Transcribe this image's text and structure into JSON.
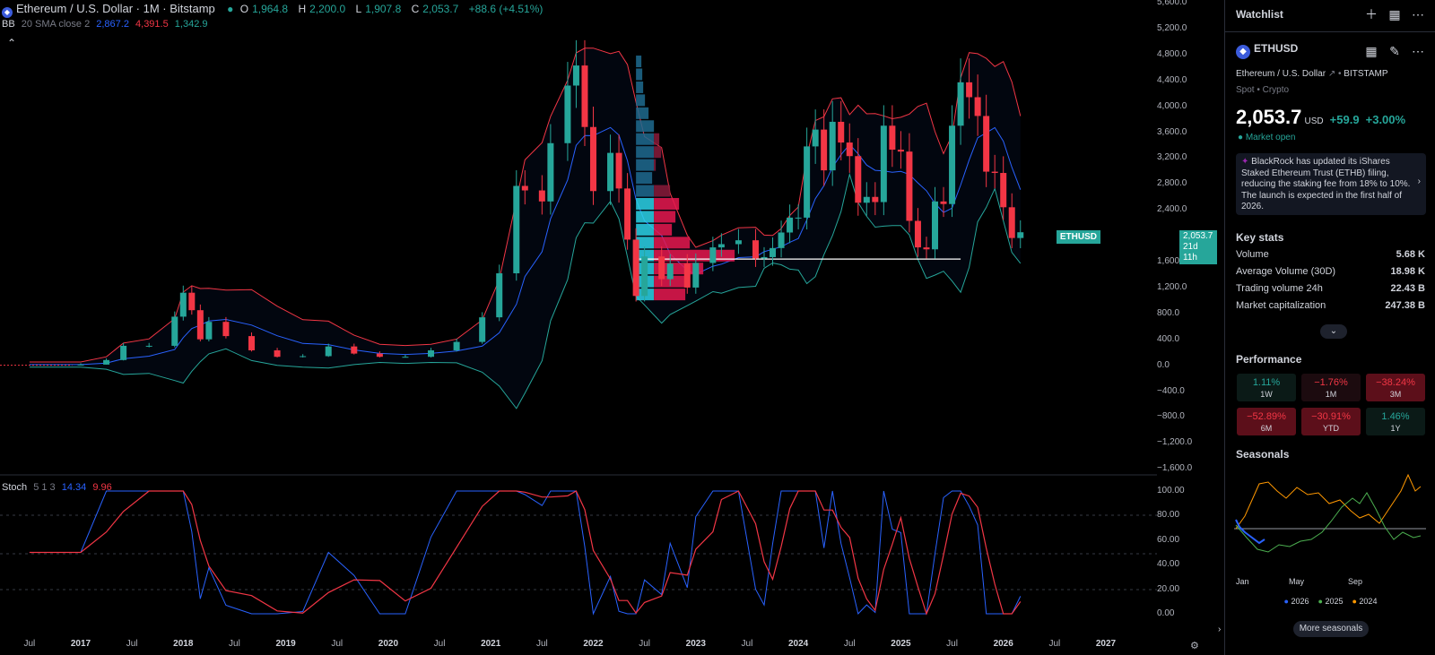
{
  "legend": {
    "title": "Ethereum / U.S. Dollar · 1M · Bitstamp",
    "o_label": "O",
    "o": "1,964.8",
    "h_label": "H",
    "h": "2,200.0",
    "l_label": "L",
    "l": "1,907.8",
    "c_label": "C",
    "c": "2,053.7",
    "change": "+88.6 (+4.51%)",
    "bb_label": "BB",
    "bb_params": "20 SMA close 2",
    "bb_mid": "2,867.2",
    "bb_upper": "4,391.5",
    "bb_lower": "1,342.9",
    "stoch_label": "Stoch",
    "stoch_params": "5 1 3",
    "stoch_k": "14.34",
    "stoch_d": "9.96",
    "collapse_icon": "chevron-up-icon"
  },
  "price_tag": {
    "symbol": "ETHUSD",
    "price": "2,053.7",
    "countdown": "21d 11h"
  },
  "y_axis_main": [
    "5,600.0",
    "5,200.0",
    "4,800.0",
    "4,400.0",
    "4,000.0",
    "3,600.0",
    "3,200.0",
    "2,800.0",
    "2,400.0",
    "1,600.0",
    "1,200.0",
    "800.0",
    "400.0",
    "0.0",
    "−400.0",
    "−800.0",
    "−1,200.0",
    "−1,600.0"
  ],
  "y_axis_stoch": [
    "100.00",
    "80.00",
    "60.00",
    "40.00",
    "20.00",
    "0.00"
  ],
  "x_axis": [
    "Jul",
    "2017",
    "Jul",
    "2018",
    "Jul",
    "2019",
    "Jul",
    "2020",
    "Jul",
    "2021",
    "Jul",
    "2022",
    "Jul",
    "2023",
    "Jul",
    "2024",
    "Jul",
    "2025",
    "Jul",
    "2026",
    "Jul",
    "2027"
  ],
  "colors": {
    "up": "#26a69a",
    "down": "#f23645",
    "bb_mid": "#2962ff",
    "bb_upper": "#f23645",
    "bb_lower": "#26a69a",
    "stoch_k": "#2962ff",
    "stoch_d": "#f23645"
  },
  "chart_data": {
    "type": "candlestick",
    "title": "Ethereum / U.S. Dollar · 1M · Bitstamp",
    "x_range": [
      "2016-07",
      "2026-02"
    ],
    "ylim": [
      -1600,
      5600
    ],
    "candles": [
      [
        1964.8,
        2200.0,
        1907.8,
        2053.7
      ]
    ],
    "close_path": [
      [
        "2016-07",
        10
      ],
      [
        "2017-01",
        10
      ],
      [
        "2017-04",
        80
      ],
      [
        "2017-06",
        300
      ],
      [
        "2017-09",
        300
      ],
      [
        "2017-12",
        750
      ],
      [
        "2018-01",
        1120
      ],
      [
        "2018-02",
        850
      ],
      [
        "2018-03",
        400
      ],
      [
        "2018-04",
        670
      ],
      [
        "2018-06",
        450
      ],
      [
        "2018-09",
        230
      ],
      [
        "2018-12",
        130
      ],
      [
        "2019-03",
        140
      ],
      [
        "2019-06",
        290
      ],
      [
        "2019-09",
        180
      ],
      [
        "2019-12",
        130
      ],
      [
        "2020-03",
        130
      ],
      [
        "2020-06",
        230
      ],
      [
        "2020-09",
        360
      ],
      [
        "2020-12",
        740
      ],
      [
        "2021-02",
        1420
      ],
      [
        "2021-04",
        2770
      ],
      [
        "2021-05",
        2700
      ],
      [
        "2021-07",
        2530
      ],
      [
        "2021-08",
        3430
      ],
      [
        "2021-10",
        4320
      ],
      [
        "2021-11",
        4630
      ],
      [
        "2021-12",
        3680
      ],
      [
        "2022-01",
        2690
      ],
      [
        "2022-03",
        3280
      ],
      [
        "2022-04",
        2730
      ],
      [
        "2022-05",
        1940
      ],
      [
        "2022-06",
        1070
      ],
      [
        "2022-07",
        1680
      ],
      [
        "2022-09",
        1330
      ],
      [
        "2022-10",
        1570
      ],
      [
        "2022-12",
        1200
      ],
      [
        "2023-01",
        1580
      ],
      [
        "2023-03",
        1820
      ],
      [
        "2023-04",
        1870
      ],
      [
        "2023-06",
        1930
      ],
      [
        "2023-08",
        1650
      ],
      [
        "2023-09",
        1670
      ],
      [
        "2023-10",
        1810
      ],
      [
        "2023-11",
        2050
      ],
      [
        "2023-12",
        2280
      ],
      [
        "2024-01",
        2280
      ],
      [
        "2024-02",
        3380
      ],
      [
        "2024-03",
        3640
      ],
      [
        "2024-04",
        3010
      ],
      [
        "2024-05",
        3760
      ],
      [
        "2024-06",
        3440
      ],
      [
        "2024-07",
        3230
      ],
      [
        "2024-08",
        2510
      ],
      [
        "2024-09",
        2600
      ],
      [
        "2024-10",
        2520
      ],
      [
        "2024-11",
        3700
      ],
      [
        "2024-12",
        3330
      ],
      [
        "2025-01",
        3300
      ],
      [
        "2025-02",
        2230
      ],
      [
        "2025-03",
        1820
      ],
      [
        "2025-04",
        1790
      ],
      [
        "2025-05",
        2530
      ],
      [
        "2025-06",
        2490
      ],
      [
        "2025-07",
        3700
      ],
      [
        "2025-08",
        4370
      ],
      [
        "2025-09",
        4140
      ],
      [
        "2025-10",
        3850
      ],
      [
        "2025-11",
        2990
      ],
      [
        "2025-12",
        2970
      ],
      [
        "2026-01",
        2440
      ],
      [
        "2026-02",
        1965
      ],
      [
        "2026-03",
        2054
      ]
    ],
    "bollinger": {
      "mid": 2867.2,
      "upper": 4391.5,
      "lower": 1342.9
    },
    "stoch": {
      "k": 14.34,
      "d": 9.96,
      "ylim": [
        0,
        100
      ]
    },
    "volume_profile": true
  },
  "panel": {
    "watchlist": "Watchlist",
    "symbol": "ETHUSD",
    "description": "Ethereum / U.S. Dollar",
    "exchange": "BITSTAMP",
    "category": "Spot • Crypto",
    "price": "2,053.7",
    "currency": "USD",
    "change": "+59.9",
    "change_pct": "+3.00%",
    "market_status": "Market open",
    "news": "BlackRock has updated its iShares Staked Ethereum Trust (ETHB) filing, reducing the staking fee from 18% to 10%. The launch is expected in the first half of 2026.",
    "key_stats_title": "Key stats",
    "stats": [
      {
        "label": "Volume",
        "value": "5.68 K"
      },
      {
        "label": "Average Volume (30D)",
        "value": "18.98 K"
      },
      {
        "label": "Trading volume 24h",
        "value": "22.43 B"
      },
      {
        "label": "Market capitalization",
        "value": "247.38 B"
      }
    ],
    "performance_title": "Performance",
    "performance": [
      {
        "pct": "1.11%",
        "period": "1W",
        "dir": "up"
      },
      {
        "pct": "−1.76%",
        "period": "1M",
        "dir": "down"
      },
      {
        "pct": "−38.24%",
        "period": "3M",
        "dir": "down"
      },
      {
        "pct": "−52.89%",
        "period": "6M",
        "dir": "down"
      },
      {
        "pct": "−30.91%",
        "period": "YTD",
        "dir": "down"
      },
      {
        "pct": "1.46%",
        "period": "1Y",
        "dir": "up"
      }
    ],
    "seasonals_title": "Seasonals",
    "seasonal_months": [
      "Jan",
      "May",
      "Sep"
    ],
    "seasonal_legend": [
      {
        "year": "2026",
        "color": "#2962ff"
      },
      {
        "year": "2025",
        "color": "#4caf50"
      },
      {
        "year": "2024",
        "color": "#ff9800"
      }
    ],
    "more_seasonals": "More seasonals"
  }
}
